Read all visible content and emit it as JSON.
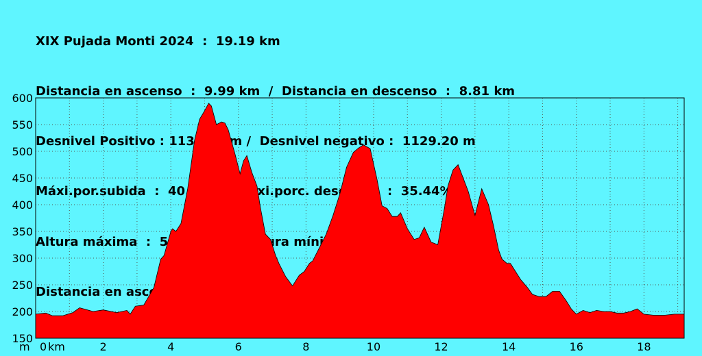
{
  "header": {
    "lines": [
      "XIX Pujada Monti 2024  :  19.19 km",
      "Distancia en ascenso  :  9.99 km  /  Distancia en descenso  :  8.81 km",
      "Desnivel Positivo : 1135.80 m /  Desnivel negativo :  1129.20 m",
      "Máxi.por.subida  :  40.49% /  Máxi.porc. descenso  :  35.44%",
      "Altura máxima  :  591.80 m  ;  Altura mínima  :  189.60 m",
      "Distancia en ascenso  :  9.99 km  /  Distancia en descenso  :  8.81 km"
    ]
  },
  "colors": {
    "background": "#5ff5ff",
    "fill": "#ff0000",
    "grid": "#555555",
    "text": "#000000"
  },
  "chart_data": {
    "type": "area",
    "xlabel": "km",
    "ylabel": "m",
    "xlim": [
      0,
      19.19
    ],
    "ylim": [
      150,
      600
    ],
    "xticks": [
      0,
      2,
      4,
      6,
      8,
      10,
      12,
      14,
      16,
      18
    ],
    "yticks": [
      150,
      200,
      250,
      300,
      350,
      400,
      450,
      500,
      550,
      600
    ],
    "grid": true,
    "x": [
      0,
      0.3,
      0.5,
      0.8,
      1.1,
      1.3,
      1.7,
      2.0,
      2.4,
      2.7,
      2.8,
      2.95,
      3.2,
      3.5,
      3.7,
      3.8,
      4.0,
      4.05,
      4.15,
      4.3,
      4.5,
      4.7,
      4.85,
      5.0,
      5.12,
      5.2,
      5.35,
      5.5,
      5.6,
      5.7,
      5.9,
      6.05,
      6.15,
      6.25,
      6.4,
      6.55,
      6.65,
      6.8,
      6.95,
      7.1,
      7.2,
      7.4,
      7.6,
      7.8,
      7.95,
      8.1,
      8.2,
      8.4,
      8.6,
      8.8,
      9.0,
      9.2,
      9.4,
      9.55,
      9.7,
      9.9,
      10.1,
      10.25,
      10.4,
      10.55,
      10.7,
      10.8,
      11.0,
      11.2,
      11.35,
      11.5,
      11.7,
      11.9,
      12.1,
      12.2,
      12.35,
      12.5,
      12.65,
      12.8,
      13.0,
      13.2,
      13.4,
      13.55,
      13.7,
      13.8,
      13.95,
      14.05,
      14.15,
      14.35,
      14.55,
      14.7,
      14.9,
      15.1,
      15.3,
      15.5,
      15.7,
      15.85,
      16.0,
      16.2,
      16.4,
      16.6,
      16.8,
      17.0,
      17.2,
      17.4,
      17.6,
      17.8,
      18.0,
      18.3,
      18.6,
      18.9,
      19.19
    ],
    "values": [
      195,
      197,
      192,
      192,
      198,
      207,
      200,
      203,
      198,
      202,
      195,
      210,
      212,
      245,
      298,
      305,
      350,
      355,
      350,
      365,
      430,
      520,
      560,
      576,
      590,
      585,
      550,
      555,
      553,
      540,
      495,
      458,
      482,
      492,
      460,
      435,
      395,
      345,
      335,
      305,
      290,
      265,
      248,
      268,
      275,
      290,
      295,
      320,
      345,
      380,
      420,
      470,
      498,
      506,
      512,
      505,
      448,
      398,
      393,
      378,
      378,
      385,
      355,
      335,
      338,
      358,
      330,
      325,
      395,
      435,
      465,
      475,
      450,
      425,
      380,
      430,
      400,
      360,
      315,
      298,
      290,
      290,
      280,
      260,
      245,
      232,
      228,
      228,
      238,
      238,
      220,
      205,
      195,
      202,
      198,
      202,
      200,
      200,
      197,
      197,
      200,
      205,
      195,
      193,
      193,
      195,
      195
    ]
  }
}
